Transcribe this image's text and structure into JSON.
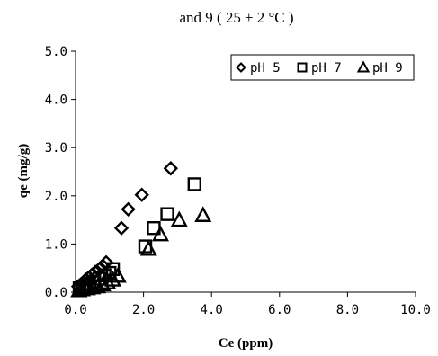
{
  "chart_data": {
    "type": "scatter",
    "title": "and 9 ( 25 ± 2 °C )",
    "xlabel": "Ce (ppm)",
    "ylabel": "qe (mg/g)",
    "xlim": [
      0.0,
      10.0
    ],
    "ylim": [
      0.0,
      5.0
    ],
    "xticks": [
      "0.0",
      "2.0",
      "4.0",
      "6.0",
      "8.0",
      "10.0"
    ],
    "yticks": [
      "0.0",
      "1.0",
      "2.0",
      "3.0",
      "4.0",
      "5.0"
    ],
    "grid": false,
    "legend_position": "top-right",
    "series": [
      {
        "name": "pH 5",
        "marker": "diamond",
        "color": "#000000",
        "x": [
          0.08,
          0.15,
          0.22,
          0.3,
          0.38,
          0.48,
          0.58,
          0.7,
          0.8,
          0.9,
          1.35,
          1.55,
          1.95,
          2.8
        ],
        "y": [
          0.12,
          0.16,
          0.2,
          0.26,
          0.3,
          0.36,
          0.42,
          0.48,
          0.55,
          0.62,
          1.33,
          1.72,
          2.02,
          2.57
        ]
      },
      {
        "name": "pH 7",
        "marker": "square",
        "color": "#000000",
        "x": [
          0.12,
          0.2,
          0.3,
          0.4,
          0.55,
          0.7,
          0.85,
          1.0,
          1.1,
          2.05,
          2.3,
          2.7,
          3.5
        ],
        "y": [
          0.08,
          0.1,
          0.14,
          0.18,
          0.22,
          0.28,
          0.35,
          0.4,
          0.48,
          0.95,
          1.33,
          1.62,
          2.24
        ]
      },
      {
        "name": "pH 9",
        "marker": "triangle",
        "color": "#000000",
        "x": [
          0.1,
          0.2,
          0.35,
          0.5,
          0.65,
          0.8,
          0.95,
          1.1,
          1.25,
          2.15,
          2.5,
          3.05,
          3.75
        ],
        "y": [
          0.04,
          0.06,
          0.08,
          0.1,
          0.12,
          0.16,
          0.2,
          0.26,
          0.34,
          0.9,
          1.2,
          1.5,
          1.6
        ]
      }
    ]
  }
}
